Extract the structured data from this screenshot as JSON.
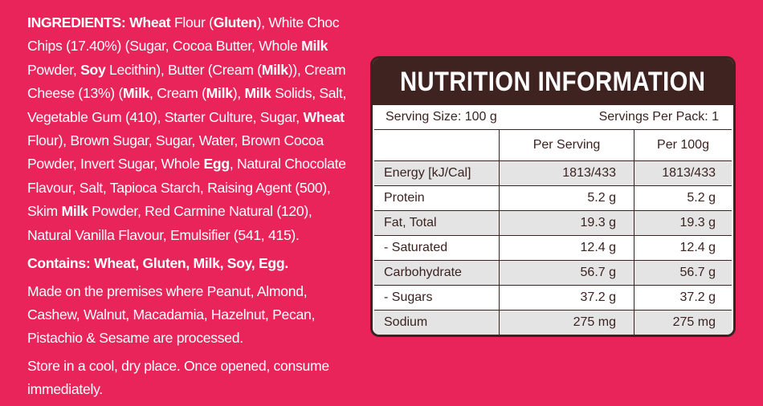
{
  "ingredients": {
    "p1": [
      {
        "t": "INGREDIENTS: Wheat",
        "b": true
      },
      {
        "t": " Flour (",
        "b": false
      },
      {
        "t": "Gluten",
        "b": true
      },
      {
        "t": "), White Choc Chips (17.40%) (Sugar, Cocoa Butter, Whole ",
        "b": false
      },
      {
        "t": "Milk",
        "b": true
      },
      {
        "t": " Powder, ",
        "b": false
      },
      {
        "t": "Soy",
        "b": true
      },
      {
        "t": " Lecithin), Butter (Cream (",
        "b": false
      },
      {
        "t": "Milk",
        "b": true
      },
      {
        "t": ")), Cream Cheese (13%) (",
        "b": false
      },
      {
        "t": "Milk",
        "b": true
      },
      {
        "t": ", Cream (",
        "b": false
      },
      {
        "t": "Milk",
        "b": true
      },
      {
        "t": "), ",
        "b": false
      },
      {
        "t": "Milk",
        "b": true
      },
      {
        "t": " Solids, Salt, Vegetable Gum (410), Starter Culture, Sugar, ",
        "b": false
      },
      {
        "t": "Wheat",
        "b": true
      },
      {
        "t": " Flour),  Brown Sugar, Sugar, Water, Brown Cocoa Powder, Invert Sugar, Whole ",
        "b": false
      },
      {
        "t": "Egg",
        "b": true
      },
      {
        "t": ", Natural Chocolate Flavour, Salt, Tapioca Starch, Raising Agent (500), Skim ",
        "b": false
      },
      {
        "t": "Milk",
        "b": true
      },
      {
        "t": " Powder, Red Carmine Natural (120), Natural Vanilla Flavour, Emulsifier (541, 415).",
        "b": false
      }
    ],
    "contains": "Contains: Wheat, Gluten, Milk, Soy, Egg.",
    "premises": "Made on the premises where Peanut, Almond, Cashew, Walnut, Macadamia, Hazelnut, Pecan, Pistachio & Sesame are processed.",
    "storage": "Store in a cool, dry place. Once opened, consume immediately."
  },
  "nutrition": {
    "title": "NUTRITION INFORMATION",
    "serving_size": "Serving Size: 100 g",
    "servings_per_pack": "Servings Per Pack: 1",
    "col_per_serving": "Per Serving",
    "col_per_100g": "Per 100g",
    "rows": [
      {
        "name": "Energy [kJ/Cal]",
        "serving": "1813/433",
        "per100": "1813/433"
      },
      {
        "name": "Protein",
        "serving": "5.2 g",
        "per100": "5.2 g"
      },
      {
        "name": "Fat, Total",
        "serving": "19.3 g",
        "per100": "19.3 g"
      },
      {
        "name": "- Saturated",
        "serving": "12.4 g",
        "per100": "12.4 g"
      },
      {
        "name": "Carbohydrate",
        "serving": "56.7 g",
        "per100": "56.7 g"
      },
      {
        "name": "- Sugars",
        "serving": "37.2 g",
        "per100": "37.2 g"
      },
      {
        "name": "Sodium",
        "serving": "275 mg",
        "per100": "275 mg"
      }
    ]
  }
}
